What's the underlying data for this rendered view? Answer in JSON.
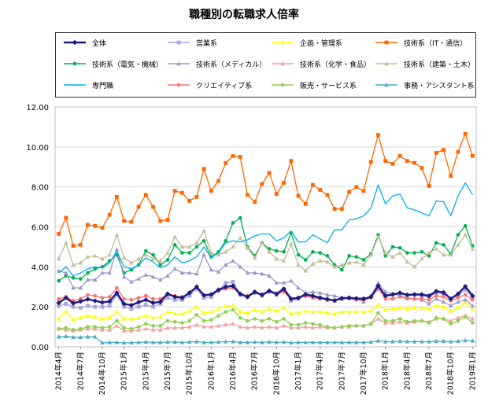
{
  "chart_data": {
    "type": "line",
    "title": "職種別の転職求人倍率",
    "xlabel": "",
    "ylabel": "",
    "ylim": [
      0,
      12
    ],
    "yticks": [
      "0.00",
      "2.00",
      "4.00",
      "6.00",
      "8.00",
      "10.00",
      "12.00"
    ],
    "grid": true,
    "legend_position": "top",
    "x": [
      "2014年4月",
      "2014年5月",
      "2014年6月",
      "2014年7月",
      "2014年8月",
      "2014年9月",
      "2014年10月",
      "2014年11月",
      "2014年12月",
      "2015年1月",
      "2015年2月",
      "2015年3月",
      "2015年4月",
      "2015年5月",
      "2015年6月",
      "2015年7月",
      "2015年8月",
      "2015年9月",
      "2015年10月",
      "2015年11月",
      "2015年12月",
      "2016年1月",
      "2016年2月",
      "2016年3月",
      "2016年4月",
      "2016年5月",
      "2016年6月",
      "2016年7月",
      "2016年8月",
      "2016年9月",
      "2016年10月",
      "2016年11月",
      "2016年12月",
      "2017年1月",
      "2017年2月",
      "2017年3月",
      "2017年4月",
      "2017年5月",
      "2017年6月",
      "2017年7月",
      "2017年8月",
      "2017年9月",
      "2017年10月",
      "2017年11月",
      "2017年12月",
      "2018年1月",
      "2018年2月",
      "2018年3月",
      "2018年4月",
      "2018年5月",
      "2018年6月",
      "2018年7月",
      "2018年8月",
      "2018年9月",
      "2018年10月",
      "2018年11月",
      "2018年12月",
      "2019年1月"
    ],
    "x_tick_labels": [
      "2014年4月",
      "2014年7月",
      "2014年10月",
      "2015年1月",
      "2015年4月",
      "2015年7月",
      "2015年10月",
      "2016年1月",
      "2016年4月",
      "2016年7月",
      "2016年10月",
      "2017年1月",
      "2017年4月",
      "2017年7月",
      "2017年10月",
      "2018年1月",
      "2018年4月",
      "2018年7月",
      "2018年10月",
      "2019年1月"
    ],
    "series": [
      {
        "name": "全体",
        "color": "#1f1a80",
        "marker": "diamond",
        "values": [
          2.2,
          2.45,
          2.18,
          2.27,
          2.38,
          2.3,
          2.22,
          2.27,
          2.7,
          2.15,
          2.08,
          2.23,
          2.35,
          2.2,
          2.25,
          2.65,
          2.5,
          2.45,
          2.7,
          3.0,
          2.58,
          2.62,
          2.85,
          3.0,
          3.05,
          2.65,
          2.5,
          2.75,
          2.6,
          2.8,
          2.65,
          2.9,
          2.4,
          2.45,
          2.62,
          2.55,
          2.45,
          2.38,
          2.32,
          2.43,
          2.45,
          2.42,
          2.4,
          2.5,
          3.05,
          2.55,
          2.62,
          2.7,
          2.6,
          2.62,
          2.62,
          2.55,
          2.78,
          2.72,
          2.4,
          2.65,
          3.02,
          2.55
        ]
      },
      {
        "name": "営業系",
        "color": "#a6a6e0",
        "marker": "square",
        "values": [
          2.05,
          2.15,
          2.0,
          1.95,
          2.05,
          2.0,
          2.0,
          2.05,
          2.6,
          2.0,
          1.9,
          2.0,
          2.1,
          2.0,
          2.15,
          2.45,
          2.35,
          2.35,
          2.55,
          2.9,
          2.45,
          2.5,
          2.8,
          3.2,
          3.25,
          2.6,
          2.5,
          2.7,
          2.55,
          2.75,
          2.6,
          2.85,
          2.3,
          2.4,
          2.55,
          2.5,
          2.45,
          2.35,
          2.3,
          2.4,
          2.45,
          2.4,
          2.4,
          2.5,
          3.0,
          2.55,
          2.6,
          2.65,
          2.55,
          2.6,
          2.55,
          2.5,
          2.7,
          2.65,
          2.4,
          2.55,
          2.85,
          2.5
        ]
      },
      {
        "name": "企画・管理系",
        "color": "#ffff00",
        "marker": "triangle",
        "values": [
          1.4,
          1.75,
          1.35,
          1.45,
          1.55,
          1.5,
          1.4,
          1.45,
          1.75,
          1.4,
          1.4,
          1.45,
          1.55,
          1.45,
          1.5,
          1.75,
          1.65,
          1.65,
          1.8,
          2.0,
          1.7,
          1.75,
          1.9,
          2.05,
          2.05,
          1.75,
          1.7,
          1.85,
          1.75,
          1.9,
          1.8,
          1.95,
          1.65,
          1.7,
          1.8,
          1.75,
          1.75,
          1.7,
          1.65,
          1.75,
          1.75,
          1.75,
          1.75,
          1.8,
          2.1,
          1.85,
          1.9,
          1.95,
          1.9,
          1.95,
          1.95,
          1.9,
          2.05,
          2.0,
          1.8,
          1.95,
          2.2,
          1.9
        ]
      },
      {
        "name": "技術系（IT・通信）",
        "color": "#ff6600",
        "marker": "square",
        "values": [
          5.65,
          6.45,
          5.05,
          5.1,
          6.1,
          6.05,
          5.95,
          6.6,
          7.5,
          6.3,
          6.25,
          7.0,
          7.6,
          7.0,
          6.3,
          6.35,
          7.8,
          7.7,
          7.3,
          7.5,
          8.9,
          7.8,
          8.3,
          9.2,
          9.55,
          9.5,
          7.6,
          7.25,
          8.15,
          8.7,
          7.65,
          8.2,
          9.3,
          7.55,
          7.15,
          8.1,
          7.85,
          7.6,
          6.9,
          6.9,
          7.75,
          8.0,
          7.8,
          9.25,
          10.6,
          9.3,
          9.15,
          9.55,
          9.3,
          9.2,
          8.95,
          8.05,
          9.7,
          9.85,
          8.55,
          9.75,
          10.65,
          9.55
        ]
      },
      {
        "name": "技術系（電気・機械）",
        "color": "#00b050",
        "marker": "circle",
        "values": [
          3.3,
          3.55,
          3.45,
          3.4,
          3.7,
          3.9,
          4.0,
          4.3,
          4.6,
          3.7,
          3.85,
          4.1,
          4.8,
          4.6,
          4.1,
          4.35,
          5.1,
          4.7,
          4.7,
          5.0,
          5.3,
          4.5,
          4.75,
          5.3,
          6.2,
          6.45,
          5.0,
          4.55,
          5.2,
          4.9,
          4.8,
          4.75,
          5.7,
          4.6,
          4.35,
          4.75,
          4.7,
          4.55,
          4.1,
          3.85,
          4.55,
          4.5,
          4.35,
          4.65,
          5.6,
          4.55,
          5.0,
          4.95,
          4.7,
          4.7,
          4.75,
          4.55,
          5.2,
          5.1,
          4.65,
          5.6,
          6.05,
          5.05
        ]
      },
      {
        "name": "技術系（メディカル）",
        "color": "#9999cc",
        "marker": "triangle",
        "values": [
          3.8,
          3.7,
          2.95,
          2.95,
          3.35,
          3.35,
          3.7,
          3.7,
          4.85,
          3.5,
          3.25,
          3.4,
          3.6,
          3.5,
          3.35,
          3.55,
          3.9,
          3.7,
          3.7,
          3.65,
          4.6,
          3.85,
          3.75,
          4.1,
          4.3,
          4.0,
          3.7,
          3.7,
          3.65,
          3.55,
          3.2,
          3.2,
          3.3,
          2.95,
          2.7,
          2.75,
          2.7,
          2.6,
          2.55,
          2.45,
          2.45,
          2.4,
          2.25,
          2.55,
          3.2,
          2.75,
          2.65,
          2.55,
          2.45,
          2.4,
          2.35,
          2.15,
          2.4,
          2.25,
          2.05,
          2.25,
          2.35,
          2.05
        ]
      },
      {
        "name": "技術系（化学・食品）",
        "color": "#f4a0a0",
        "marker": "triangle",
        "values": [
          0.9,
          0.85,
          0.8,
          0.85,
          0.9,
          0.9,
          0.85,
          0.85,
          1.05,
          0.8,
          0.8,
          0.85,
          0.9,
          0.85,
          0.85,
          0.95,
          0.95,
          0.95,
          1.0,
          1.1,
          1.0,
          1.0,
          1.05,
          1.1,
          1.15,
          1.0,
          0.95,
          1.0,
          0.95,
          1.0,
          0.95,
          1.05,
          0.95,
          0.95,
          1.0,
          0.95,
          1.0,
          0.95,
          0.95,
          1.0,
          1.0,
          1.05,
          1.05,
          1.15,
          1.4,
          1.2,
          1.2,
          1.25,
          1.2,
          1.25,
          1.3,
          1.25,
          1.4,
          1.4,
          1.3,
          1.45,
          1.55,
          1.4
        ]
      },
      {
        "name": "技術系（建築・土木）",
        "color": "#c4bd97",
        "marker": "triangle",
        "values": [
          4.4,
          5.2,
          4.1,
          4.2,
          4.5,
          4.55,
          4.4,
          4.6,
          5.6,
          4.45,
          4.2,
          4.4,
          4.6,
          4.4,
          4.3,
          4.7,
          5.5,
          5.0,
          5.0,
          5.2,
          5.8,
          4.7,
          4.6,
          4.75,
          5.0,
          5.45,
          4.95,
          4.45,
          5.2,
          4.75,
          4.4,
          4.3,
          5.15,
          4.1,
          3.8,
          4.15,
          4.3,
          4.25,
          4.0,
          4.1,
          4.2,
          4.25,
          4.1,
          4.6,
          5.5,
          4.7,
          4.5,
          4.7,
          4.25,
          4.0,
          4.4,
          4.7,
          4.9,
          4.6,
          4.6,
          5.1,
          5.6,
          4.9
        ]
      },
      {
        "name": "専門職",
        "color": "#00b0f0",
        "marker": "none",
        "values": [
          3.7,
          4.0,
          3.55,
          3.7,
          3.9,
          4.0,
          3.95,
          4.2,
          4.8,
          4.0,
          3.9,
          4.1,
          4.45,
          4.25,
          3.95,
          4.1,
          4.5,
          4.2,
          4.3,
          4.5,
          5.0,
          4.45,
          4.7,
          5.2,
          5.3,
          5.25,
          5.35,
          5.55,
          5.65,
          5.65,
          5.3,
          5.45,
          5.8,
          5.25,
          5.25,
          5.6,
          5.4,
          5.2,
          5.85,
          5.85,
          6.35,
          6.4,
          6.55,
          6.95,
          8.1,
          7.15,
          7.55,
          7.65,
          6.95,
          6.85,
          6.7,
          6.55,
          7.3,
          7.25,
          6.55,
          7.55,
          8.2,
          7.6
        ]
      },
      {
        "name": "クリエイティブ系",
        "color": "#ff7070",
        "marker": "circle",
        "values": [
          2.4,
          2.5,
          2.3,
          2.4,
          2.6,
          2.55,
          2.45,
          2.5,
          2.95,
          2.4,
          2.35,
          2.45,
          2.55,
          2.4,
          2.4,
          2.65,
          2.55,
          2.5,
          2.7,
          2.95,
          2.55,
          2.6,
          2.8,
          2.9,
          2.95,
          2.6,
          2.55,
          2.75,
          2.6,
          2.8,
          2.6,
          2.75,
          2.4,
          2.45,
          2.55,
          2.45,
          2.4,
          2.35,
          2.3,
          2.4,
          2.4,
          2.35,
          2.35,
          2.45,
          2.9,
          2.4,
          2.4,
          2.5,
          2.4,
          2.4,
          2.4,
          2.35,
          2.55,
          2.5,
          2.3,
          2.45,
          2.6,
          2.35
        ]
      },
      {
        "name": "販売・サービス系",
        "color": "#92d050",
        "marker": "circle",
        "values": [
          0.9,
          0.95,
          0.85,
          0.9,
          1.0,
          1.0,
          0.95,
          1.0,
          1.3,
          0.95,
          0.9,
          1.0,
          1.15,
          1.05,
          1.05,
          1.3,
          1.25,
          1.2,
          1.3,
          1.6,
          1.3,
          1.35,
          1.55,
          1.75,
          1.85,
          1.45,
          1.3,
          1.4,
          1.3,
          1.4,
          1.25,
          1.4,
          1.1,
          1.1,
          1.2,
          1.15,
          1.1,
          1.0,
          0.95,
          1.0,
          1.05,
          1.05,
          1.05,
          1.15,
          1.7,
          1.3,
          1.3,
          1.4,
          1.25,
          1.3,
          1.3,
          1.2,
          1.45,
          1.4,
          1.15,
          1.3,
          1.5,
          1.2
        ]
      },
      {
        "name": "事務・アシスタント系",
        "color": "#4bacc6",
        "marker": "triangle",
        "values": [
          0.5,
          0.52,
          0.48,
          0.48,
          0.5,
          0.5,
          0.2,
          0.22,
          0.22,
          0.2,
          0.2,
          0.22,
          0.24,
          0.22,
          0.22,
          0.24,
          0.24,
          0.22,
          0.24,
          0.26,
          0.22,
          0.22,
          0.24,
          0.26,
          0.26,
          0.22,
          0.22,
          0.24,
          0.22,
          0.24,
          0.22,
          0.24,
          0.2,
          0.22,
          0.22,
          0.22,
          0.22,
          0.22,
          0.22,
          0.22,
          0.22,
          0.22,
          0.22,
          0.24,
          0.3,
          0.26,
          0.26,
          0.28,
          0.26,
          0.26,
          0.26,
          0.26,
          0.28,
          0.28,
          0.26,
          0.28,
          0.32,
          0.3
        ]
      }
    ]
  }
}
